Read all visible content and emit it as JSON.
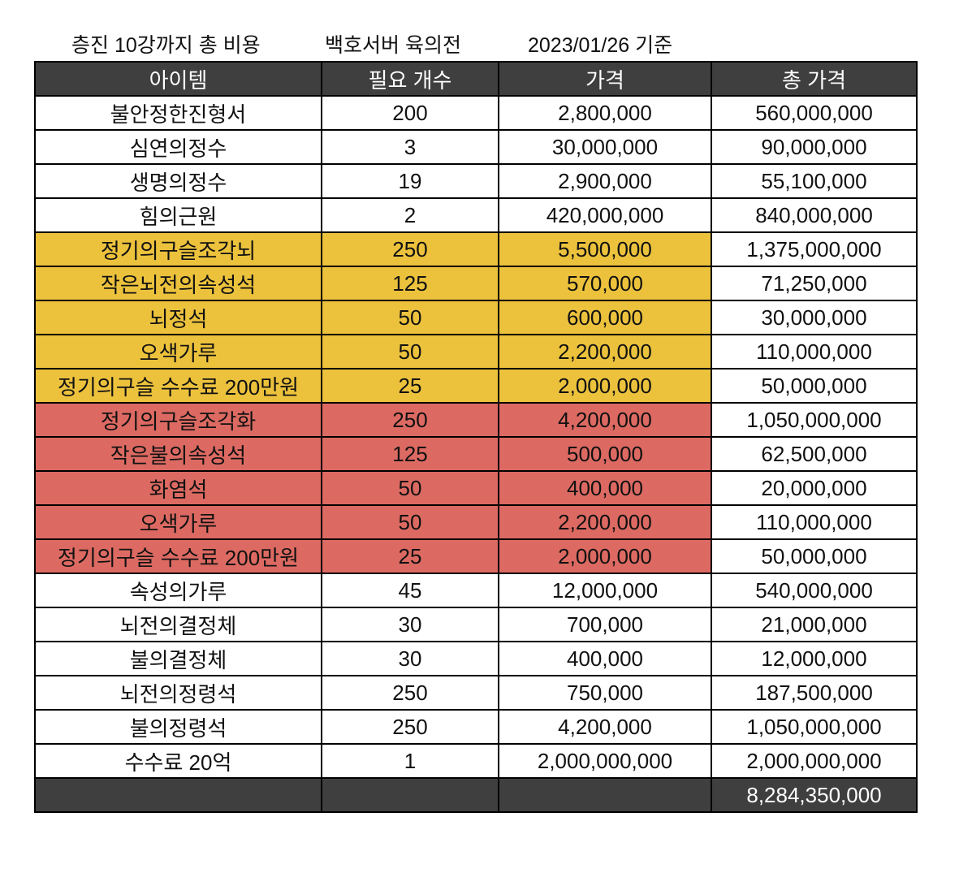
{
  "titles": {
    "left": "층진 10강까지 총 비용",
    "middle": "백호서버 육의전",
    "right": "2023/01/26 기준"
  },
  "colors": {
    "header_bg": "#3f3f3f",
    "highlight_yellow": "#ecc23d",
    "highlight_red": "#dc6a62",
    "border": "#000000"
  },
  "chart_data": {
    "type": "table",
    "title": "층진 10강까지 총 비용",
    "subtitle": "백호서버 육의전 2023/01/26 기준",
    "columns": [
      "아이템",
      "필요 개수",
      "가격",
      "총 가격"
    ],
    "rows": [
      {
        "cells": [
          "불안정한진형서",
          "200",
          "2,800,000",
          "560,000,000"
        ],
        "highlight": "none"
      },
      {
        "cells": [
          "심연의정수",
          "3",
          "30,000,000",
          "90,000,000"
        ],
        "highlight": "none"
      },
      {
        "cells": [
          "생명의정수",
          "19",
          "2,900,000",
          "55,100,000"
        ],
        "highlight": "none"
      },
      {
        "cells": [
          "힘의근원",
          "2",
          "420,000,000",
          "840,000,000"
        ],
        "highlight": "none"
      },
      {
        "cells": [
          "정기의구슬조각뇌",
          "250",
          "5,500,000",
          "1,375,000,000"
        ],
        "highlight": "yellow"
      },
      {
        "cells": [
          "작은뇌전의속성석",
          "125",
          "570,000",
          "71,250,000"
        ],
        "highlight": "yellow"
      },
      {
        "cells": [
          "뇌정석",
          "50",
          "600,000",
          "30,000,000"
        ],
        "highlight": "yellow"
      },
      {
        "cells": [
          "오색가루",
          "50",
          "2,200,000",
          "110,000,000"
        ],
        "highlight": "yellow"
      },
      {
        "cells": [
          "정기의구슬 수수료 200만원",
          "25",
          "2,000,000",
          "50,000,000"
        ],
        "highlight": "yellow"
      },
      {
        "cells": [
          "정기의구슬조각화",
          "250",
          "4,200,000",
          "1,050,000,000"
        ],
        "highlight": "red"
      },
      {
        "cells": [
          "작은불의속성석",
          "125",
          "500,000",
          "62,500,000"
        ],
        "highlight": "red"
      },
      {
        "cells": [
          "화염석",
          "50",
          "400,000",
          "20,000,000"
        ],
        "highlight": "red"
      },
      {
        "cells": [
          "오색가루",
          "50",
          "2,200,000",
          "110,000,000"
        ],
        "highlight": "red"
      },
      {
        "cells": [
          "정기의구슬 수수료 200만원",
          "25",
          "2,000,000",
          "50,000,000"
        ],
        "highlight": "red"
      },
      {
        "cells": [
          "속성의가루",
          "45",
          "12,000,000",
          "540,000,000"
        ],
        "highlight": "none"
      },
      {
        "cells": [
          "뇌전의결정체",
          "30",
          "700,000",
          "21,000,000"
        ],
        "highlight": "none"
      },
      {
        "cells": [
          "불의결정체",
          "30",
          "400,000",
          "12,000,000"
        ],
        "highlight": "none"
      },
      {
        "cells": [
          "뇌전의정령석",
          "250",
          "750,000",
          "187,500,000"
        ],
        "highlight": "none"
      },
      {
        "cells": [
          "불의정령석",
          "250",
          "4,200,000",
          "1,050,000,000"
        ],
        "highlight": "none"
      },
      {
        "cells": [
          "수수료 20억",
          "1",
          "2,000,000,000",
          "2,000,000,000"
        ],
        "highlight": "none"
      }
    ],
    "footer": {
      "grand_total": "8,284,350,000"
    }
  }
}
